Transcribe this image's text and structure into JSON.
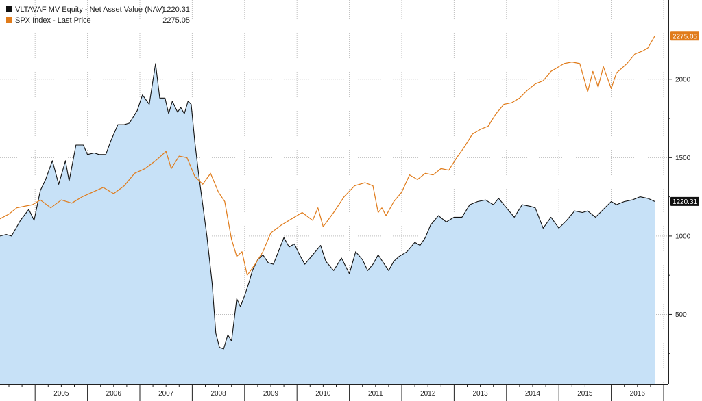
{
  "chart_data": {
    "type": "line",
    "legend": {
      "placement": "top-left",
      "entries": [
        {
          "label": "VLTAVAF MV Equity - Net Asset Value (NAV)",
          "last_value": "1220.31",
          "color": "#111111"
        },
        {
          "label": "SPX Index - Last Price",
          "last_value": "2275.05",
          "color": "#e07b1a"
        }
      ]
    },
    "x_axis": {
      "labels": [
        "2005",
        "2006",
        "2007",
        "2008",
        "2009",
        "2010",
        "2011",
        "2012",
        "2013",
        "2014",
        "2015",
        "2016"
      ],
      "range": [
        2004.33,
        2016.83
      ]
    },
    "y_axis": {
      "position": "right",
      "ticks": [
        "500",
        "1000",
        "1500",
        "2000"
      ],
      "range": [
        100,
        2580
      ]
    },
    "grid": true,
    "colors": {
      "nav_fill": "#c7e1f7",
      "nav_line": "#111111",
      "spx_line": "#e07b1a",
      "grid": "#bdbdbd",
      "flag_spx_bg": "#e07b1a",
      "flag_nav_bg": "#111111",
      "flag_text": "#ffffff"
    },
    "series": [
      {
        "name": "VLTAVAF MV Equity - Net Asset Value (NAV)",
        "style": "area",
        "last_label": "1220.31",
        "x": [
          2004.33,
          2004.45,
          2004.55,
          2004.72,
          2004.88,
          2004.98,
          2005.1,
          2005.2,
          2005.33,
          2005.45,
          2005.58,
          2005.65,
          2005.78,
          2005.92,
          2006.0,
          2006.13,
          2006.22,
          2006.35,
          2006.45,
          2006.58,
          2006.7,
          2006.8,
          2006.95,
          2007.05,
          2007.18,
          2007.3,
          2007.38,
          2007.48,
          2007.55,
          2007.62,
          2007.72,
          2007.78,
          2007.85,
          2007.92,
          2007.98,
          2008.05,
          2008.12,
          2008.2,
          2008.28,
          2008.38,
          2008.45,
          2008.52,
          2008.6,
          2008.68,
          2008.75,
          2008.85,
          2008.92,
          2009.0,
          2009.08,
          2009.15,
          2009.25,
          2009.35,
          2009.45,
          2009.55,
          2009.62,
          2009.75,
          2009.85,
          2009.95,
          2010.05,
          2010.15,
          2010.3,
          2010.45,
          2010.55,
          2010.7,
          2010.85,
          2011.0,
          2011.12,
          2011.25,
          2011.35,
          2011.45,
          2011.55,
          2011.65,
          2011.75,
          2011.85,
          2011.95,
          2012.1,
          2012.25,
          2012.35,
          2012.45,
          2012.55,
          2012.7,
          2012.85,
          2013.0,
          2013.15,
          2013.3,
          2013.45,
          2013.6,
          2013.75,
          2013.85,
          2014.0,
          2014.15,
          2014.3,
          2014.45,
          2014.55,
          2014.7,
          2014.85,
          2015.0,
          2015.15,
          2015.3,
          2015.45,
          2015.55,
          2015.7,
          2015.85,
          2016.0,
          2016.1,
          2016.25,
          2016.4,
          2016.55,
          2016.7,
          2016.83
        ],
        "y": [
          1000,
          1010,
          1000,
          1100,
          1170,
          1100,
          1290,
          1360,
          1480,
          1330,
          1480,
          1350,
          1580,
          1580,
          1520,
          1530,
          1520,
          1520,
          1610,
          1710,
          1710,
          1720,
          1800,
          1900,
          1840,
          2100,
          1880,
          1880,
          1780,
          1860,
          1790,
          1820,
          1780,
          1860,
          1840,
          1600,
          1400,
          1200,
          1000,
          700,
          380,
          290,
          280,
          370,
          330,
          600,
          550,
          620,
          700,
          780,
          850,
          880,
          830,
          820,
          880,
          990,
          930,
          950,
          880,
          820,
          880,
          940,
          840,
          780,
          860,
          760,
          900,
          850,
          780,
          820,
          880,
          830,
          780,
          840,
          870,
          900,
          960,
          940,
          990,
          1070,
          1130,
          1090,
          1120,
          1120,
          1200,
          1220,
          1230,
          1200,
          1240,
          1180,
          1120,
          1200,
          1190,
          1180,
          1050,
          1120,
          1050,
          1100,
          1160,
          1150,
          1160,
          1120,
          1170,
          1220,
          1200,
          1220,
          1230,
          1250,
          1240,
          1220.31
        ]
      },
      {
        "name": "SPX Index - Last Price",
        "style": "line",
        "last_label": "2275.05",
        "x": [
          2004.33,
          2004.5,
          2004.65,
          2004.8,
          2004.95,
          2005.1,
          2005.3,
          2005.5,
          2005.7,
          2005.9,
          2006.1,
          2006.3,
          2006.5,
          2006.7,
          2006.9,
          2007.1,
          2007.3,
          2007.5,
          2007.6,
          2007.75,
          2007.9,
          2008.05,
          2008.2,
          2008.35,
          2008.5,
          2008.62,
          2008.75,
          2008.85,
          2008.95,
          2009.05,
          2009.2,
          2009.35,
          2009.5,
          2009.7,
          2009.9,
          2010.1,
          2010.3,
          2010.4,
          2010.5,
          2010.7,
          2010.9,
          2011.1,
          2011.3,
          2011.45,
          2011.55,
          2011.62,
          2011.7,
          2011.85,
          2012.0,
          2012.15,
          2012.3,
          2012.45,
          2012.6,
          2012.75,
          2012.9,
          2013.05,
          2013.2,
          2013.35,
          2013.5,
          2013.65,
          2013.8,
          2013.95,
          2014.1,
          2014.25,
          2014.4,
          2014.55,
          2014.7,
          2014.85,
          2015.0,
          2015.1,
          2015.25,
          2015.4,
          2015.55,
          2015.65,
          2015.75,
          2015.85,
          2016.0,
          2016.1,
          2016.2,
          2016.3,
          2016.45,
          2016.6,
          2016.7,
          2016.83
        ],
        "y": [
          1110,
          1140,
          1180,
          1190,
          1200,
          1230,
          1180,
          1230,
          1210,
          1250,
          1280,
          1310,
          1270,
          1320,
          1400,
          1430,
          1480,
          1540,
          1430,
          1510,
          1500,
          1380,
          1330,
          1400,
          1280,
          1220,
          980,
          870,
          900,
          750,
          820,
          900,
          1020,
          1070,
          1110,
          1150,
          1100,
          1180,
          1060,
          1150,
          1250,
          1320,
          1340,
          1320,
          1150,
          1180,
          1130,
          1220,
          1280,
          1390,
          1360,
          1400,
          1390,
          1430,
          1420,
          1500,
          1570,
          1650,
          1680,
          1700,
          1780,
          1840,
          1850,
          1880,
          1930,
          1970,
          1990,
          2050,
          2080,
          2100,
          2110,
          2100,
          1920,
          2050,
          1950,
          2080,
          1940,
          2040,
          2070,
          2100,
          2160,
          2180,
          2200,
          2275.05
        ]
      }
    ]
  }
}
